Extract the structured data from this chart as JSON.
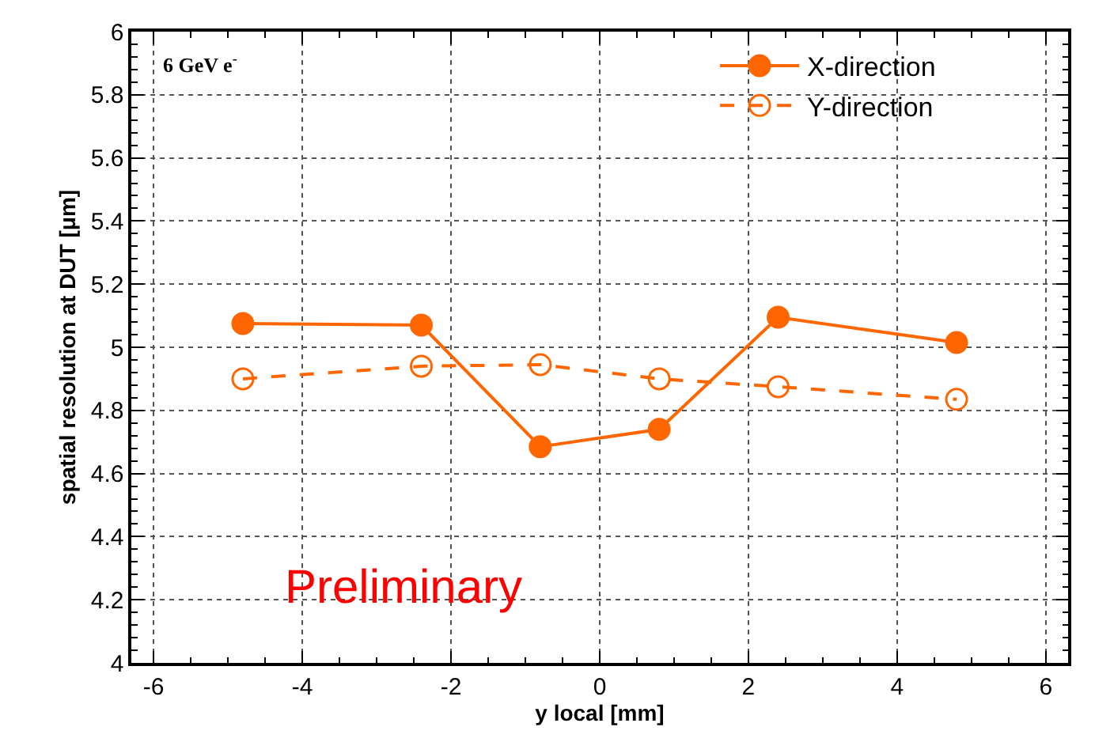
{
  "chart_data": {
    "type": "line",
    "xlabel": "y local [mm]",
    "ylabel": "spatial resolution at DUT [μm]",
    "x": [
      -4.8,
      -2.4,
      -0.8,
      0.8,
      2.4,
      4.8
    ],
    "series": [
      {
        "name": "X-direction",
        "color": "#ff6600",
        "values": [
          5.075,
          5.07,
          4.685,
          4.74,
          5.095,
          5.015
        ],
        "line_style": "solid",
        "marker": "circle"
      },
      {
        "name": "Y-direction",
        "color": "#ff6600",
        "values": [
          4.9,
          4.94,
          4.945,
          4.9,
          4.875,
          4.835
        ],
        "line_style": "dashed",
        "marker": "circle"
      }
    ],
    "xlim": [
      -6.3,
      6.3
    ],
    "xticks": [
      -6,
      -4,
      -2,
      0,
      2,
      4,
      6
    ],
    "ylim": [
      4,
      6
    ],
    "yticks": [
      4,
      4.2,
      4.4,
      4.6,
      4.8,
      5,
      5.2,
      5.4,
      5.6,
      5.8,
      6
    ],
    "grid": true,
    "legend": "top right",
    "annotations": [
      "6 GeV e$^{-}$",
      "Preliminary"
    ]
  }
}
